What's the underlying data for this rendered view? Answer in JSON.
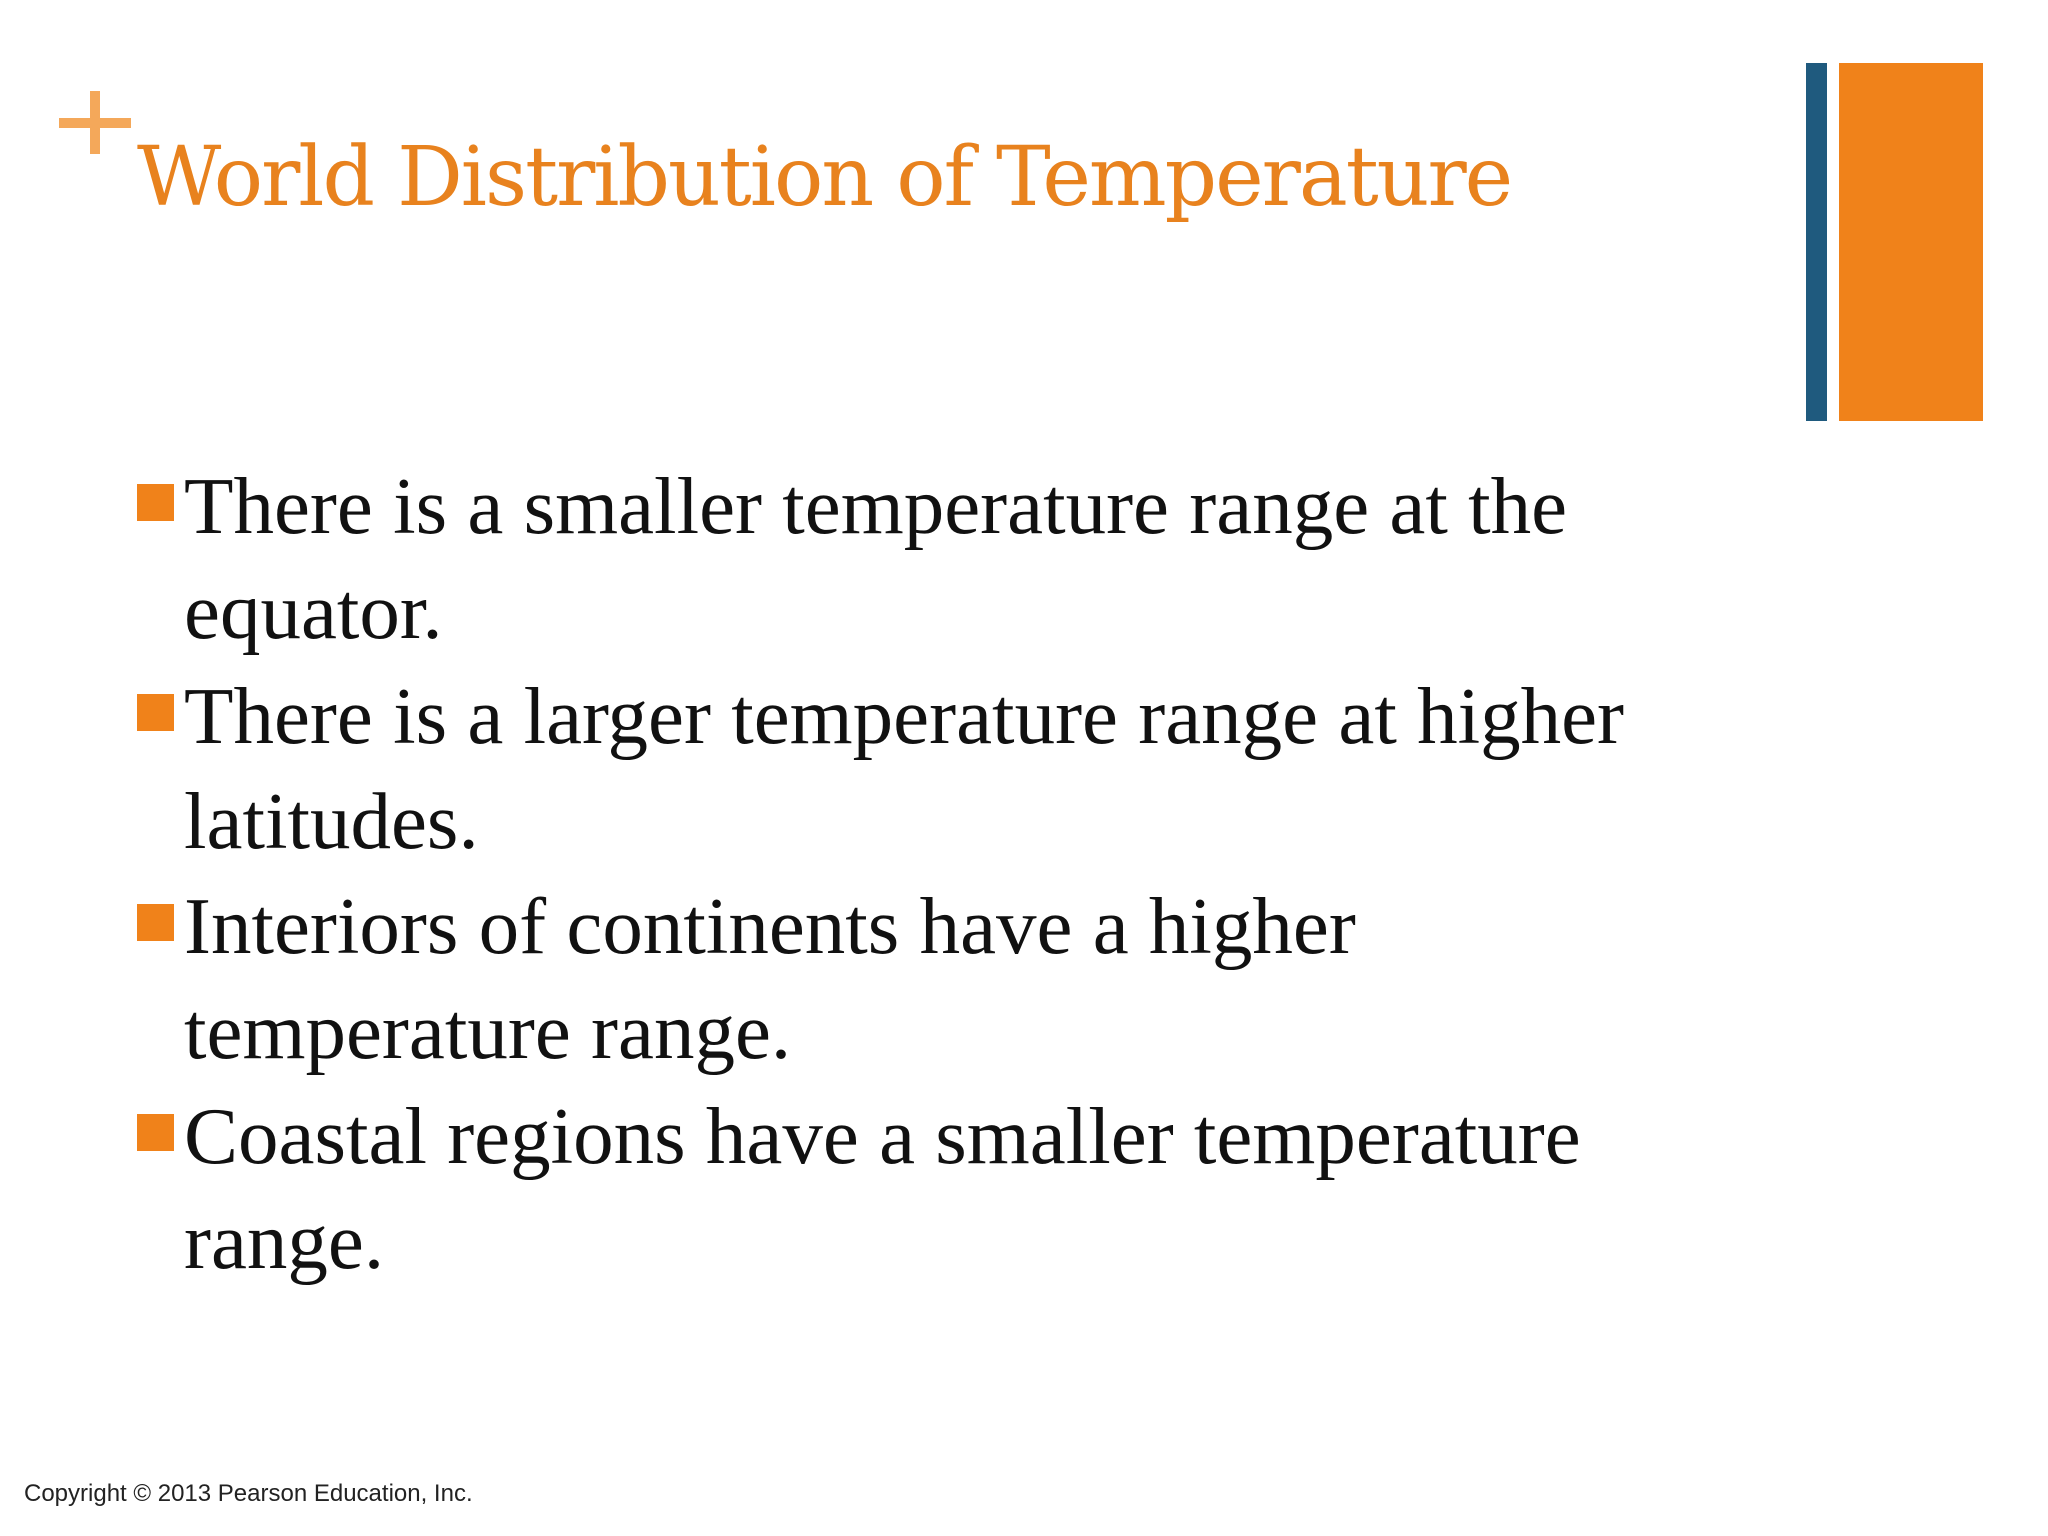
{
  "header": {
    "title": "World Distribution of Temperature"
  },
  "bullets": [
    {
      "text": "There is a smaller temperature range at the equator."
    },
    {
      "text": "There is a larger temperature range at higher latitudes."
    },
    {
      "text": "Interiors of continents have a higher temperature range."
    },
    {
      "text": "Coastal regions have a smaller temperature range."
    }
  ],
  "footer": {
    "copyright": "Copyright © 2013 Pearson Education, Inc."
  }
}
